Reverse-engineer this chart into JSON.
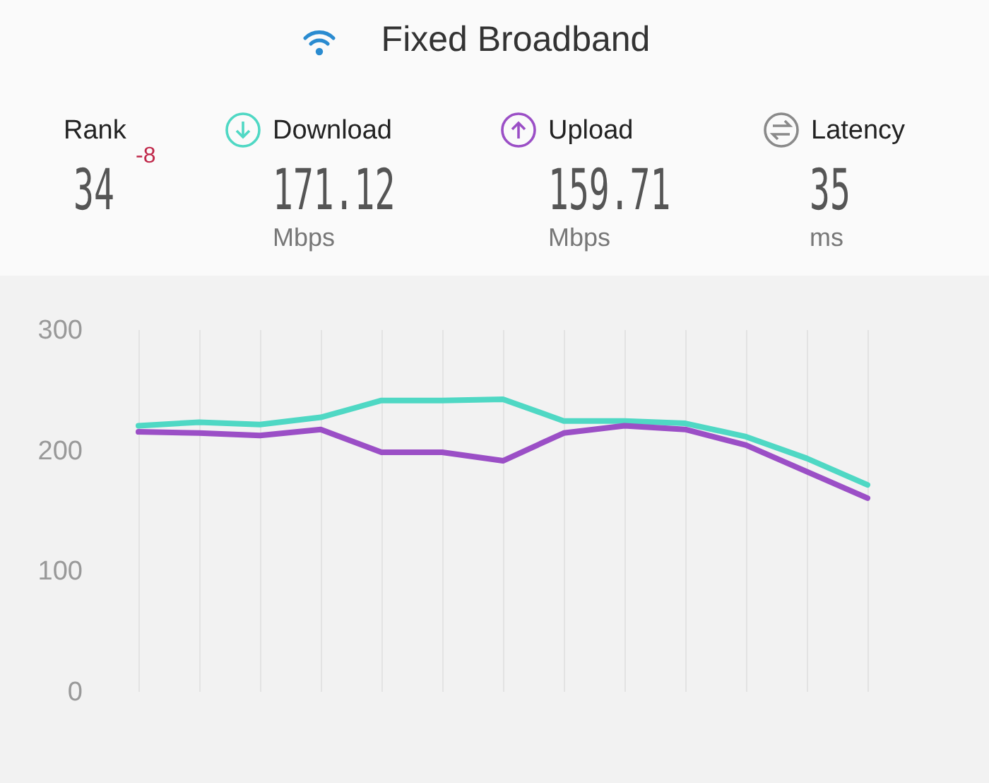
{
  "chart_data": {
    "type": "line",
    "title": "Fixed Broadband",
    "annotations": [
      "Rank",
      "34",
      "-8",
      "171.12",
      "Mbps",
      "159.71",
      "Mbps",
      "Latency",
      "35",
      "ms"
    ],
    "categories": [
      null,
      null,
      null,
      null,
      null,
      null,
      null,
      null,
      null,
      null,
      null,
      null,
      null
    ],
    "series": [
      {
        "name": "Download",
        "color": "#4fd8c4",
        "values": [
          220,
          223,
          221,
          227,
          241,
          241,
          242,
          224,
          224,
          222,
          211,
          193,
          171
        ]
      },
      {
        "name": "Upload",
        "color": "#9b4fc6",
        "values": [
          215,
          214,
          212,
          217,
          198,
          198,
          191,
          214,
          220,
          217,
          204,
          182,
          160
        ]
      }
    ],
    "ylim": [
      0,
      300
    ],
    "yticks": [
      0,
      100,
      200,
      300
    ],
    "grid": "x",
    "legend": "top",
    "tick_labels": "y"
  }
}
